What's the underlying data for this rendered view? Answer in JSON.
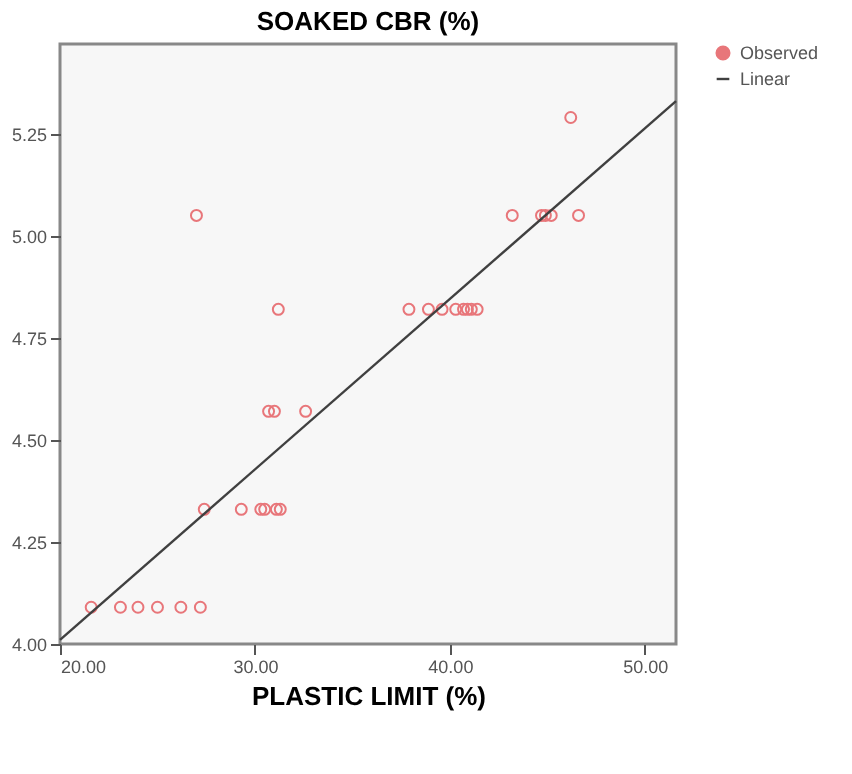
{
  "chart_data": {
    "type": "scatter",
    "title": "SOAKED CBR (%)",
    "xlabel": "PLASTIC LIMIT (%)",
    "xlim": [
      20,
      51.6
    ],
    "ylim": [
      4.0,
      5.47
    ],
    "xticks": [
      {
        "value": 20,
        "label": "20.00"
      },
      {
        "value": 30,
        "label": "30.00"
      },
      {
        "value": 40,
        "label": "40.00"
      },
      {
        "value": 50,
        "label": "50.00"
      }
    ],
    "yticks": [
      {
        "value": 4.0,
        "label": "4.00"
      },
      {
        "value": 4.25,
        "label": "4.25"
      },
      {
        "value": 4.5,
        "label": "4.50"
      },
      {
        "value": 4.75,
        "label": "4.75"
      },
      {
        "value": 5.0,
        "label": "5.00"
      },
      {
        "value": 5.25,
        "label": "5.25"
      }
    ],
    "grid": false,
    "legend": "top right",
    "series": [
      {
        "name": "Observed",
        "marker": "circle",
        "color": "#e8767a",
        "x": [
          21.6,
          23.1,
          24.0,
          25.0,
          26.2,
          27.2,
          27.4,
          29.3,
          30.3,
          30.5,
          31.1,
          31.3,
          30.7,
          31.0,
          32.6,
          31.2,
          37.9,
          38.9,
          39.6,
          40.3,
          40.7,
          40.9,
          41.1,
          41.4,
          27.0,
          43.2,
          44.7,
          44.9,
          45.2,
          46.6,
          46.2
        ],
        "values": [
          4.09,
          4.09,
          4.09,
          4.09,
          4.09,
          4.09,
          4.33,
          4.33,
          4.33,
          4.33,
          4.33,
          4.33,
          4.57,
          4.57,
          4.57,
          4.82,
          4.82,
          4.82,
          4.82,
          4.82,
          4.82,
          4.82,
          4.82,
          4.82,
          5.05,
          5.05,
          5.05,
          5.05,
          5.05,
          5.05,
          5.29
        ]
      },
      {
        "name": "Linear",
        "type": "line",
        "color": "#404040",
        "x": [
          20,
          51.6
        ],
        "values": [
          4.01,
          5.33
        ]
      }
    ]
  }
}
